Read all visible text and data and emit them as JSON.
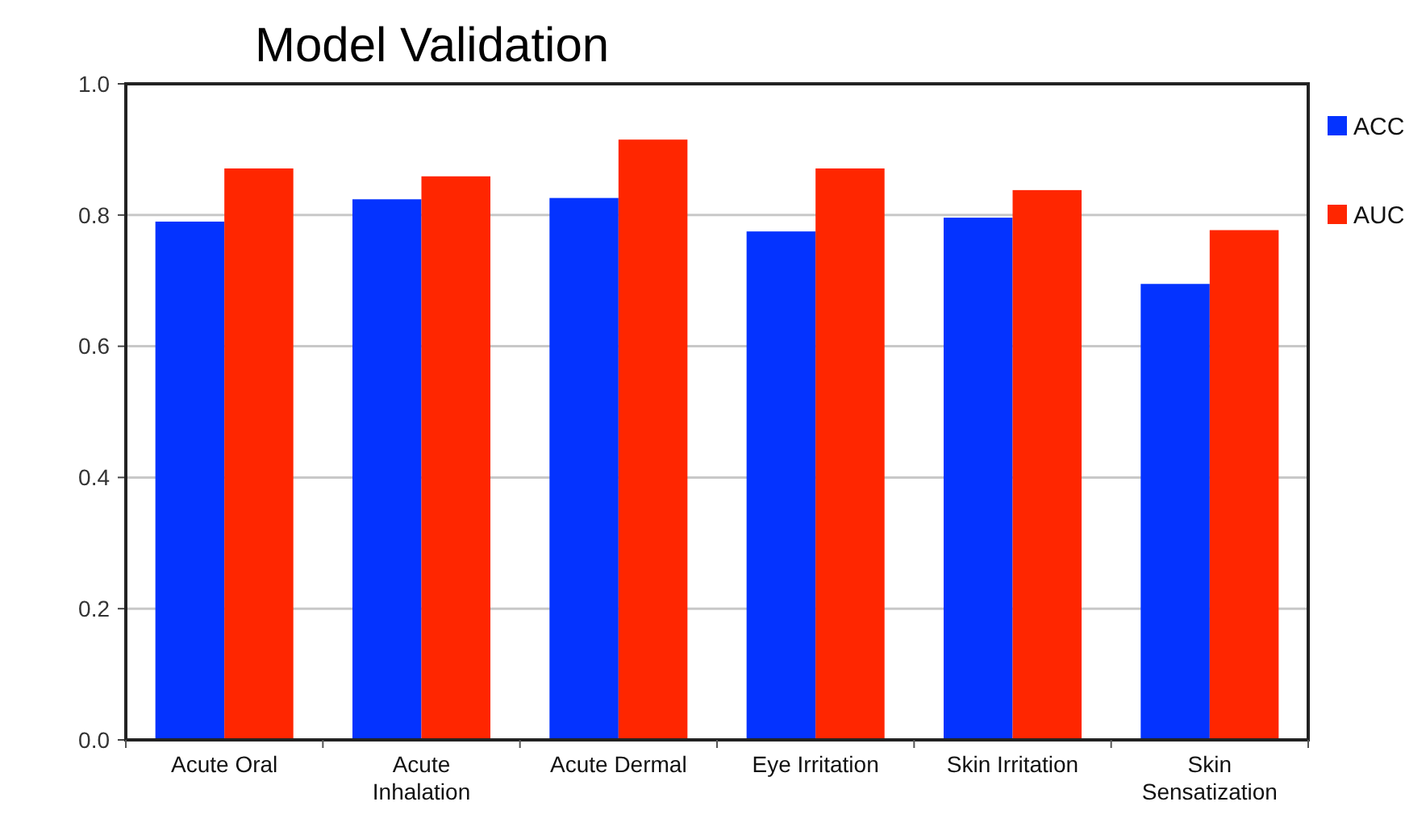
{
  "chart_data": {
    "type": "bar",
    "title": "Model Validation",
    "categories": [
      "Acute Oral",
      "Acute Inhalation",
      "Acute Dermal",
      "Eye Irritation",
      "Skin Irritation",
      "Skin Sensatization"
    ],
    "series": [
      {
        "name": "ACC",
        "color": "#0433ff",
        "values": [
          0.79,
          0.824,
          0.826,
          0.775,
          0.796,
          0.695
        ]
      },
      {
        "name": "AUC",
        "color": "#ff2600",
        "values": [
          0.871,
          0.859,
          0.915,
          0.871,
          0.838,
          0.777
        ]
      }
    ],
    "ylim": [
      0,
      1
    ],
    "yticks": [
      {
        "value": 0,
        "label": "0.0"
      },
      {
        "value": 0.2,
        "label": "0.2"
      },
      {
        "value": 0.4,
        "label": "0.4"
      },
      {
        "value": 0.6,
        "label": "0.6"
      },
      {
        "value": 0.8,
        "label": "0.8"
      },
      {
        "value": 1,
        "label": "1.0"
      }
    ],
    "grid": "y",
    "legend": "right"
  }
}
